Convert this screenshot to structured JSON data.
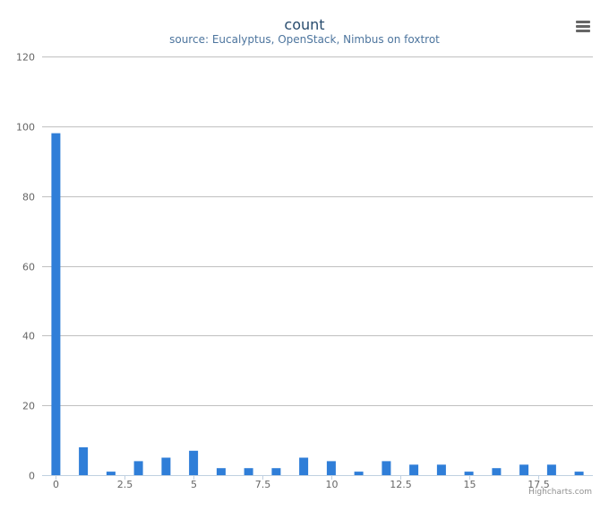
{
  "chart_data": {
    "type": "bar",
    "title": "count",
    "subtitle": "source: Eucalyptus, OpenStack, Nimbus on foxtrot",
    "x": [
      0,
      1,
      2,
      3,
      4,
      5,
      6,
      7,
      8,
      9,
      10,
      11,
      12,
      13,
      14,
      15,
      16,
      17,
      18,
      19
    ],
    "values": [
      98,
      8,
      1,
      4,
      5,
      7,
      2,
      2,
      2,
      5,
      4,
      1,
      4,
      3,
      3,
      1,
      2,
      3,
      3,
      1
    ],
    "xlim": [
      -0.5,
      19.5
    ],
    "ylim": [
      0,
      120
    ],
    "x_ticks": [
      0,
      2.5,
      5,
      7.5,
      10,
      12.5,
      15,
      17.5
    ],
    "x_tick_labels": [
      "0",
      "2.5",
      "5",
      "7.5",
      "10",
      "12.5",
      "15",
      "17.5"
    ],
    "y_ticks": [
      0,
      20,
      40,
      60,
      80,
      100,
      120
    ],
    "y_tick_labels": [
      "0",
      "20",
      "40",
      "60",
      "80",
      "100",
      "120"
    ],
    "xlabel": "",
    "ylabel": "",
    "grid": true,
    "legend": "none",
    "colors": {
      "bar": "#2f7ed8",
      "title": "#274b6d",
      "subtitle": "#4d759e",
      "grid": "#c0c0c0",
      "axis": "#c0d0e0",
      "tick_label": "#666666"
    }
  },
  "menu": {
    "icon": "menu-icon"
  },
  "credits": {
    "label": "Highcharts.com"
  }
}
